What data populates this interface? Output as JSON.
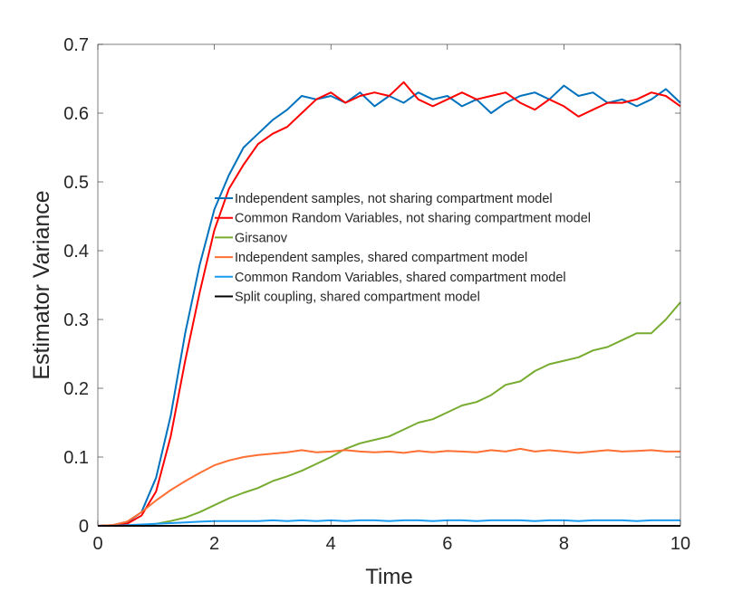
{
  "chart_data": {
    "type": "line",
    "title": "",
    "xlabel": "Time",
    "ylabel": "Estimator Variance",
    "xlim": [
      0,
      10
    ],
    "ylim": [
      0,
      0.7
    ],
    "xticks": [
      "0",
      "2",
      "4",
      "6",
      "8",
      "10"
    ],
    "yticks": [
      "0",
      "0.1",
      "0.2",
      "0.3",
      "0.4",
      "0.5",
      "0.6",
      "0.7"
    ],
    "grid": false,
    "legend_placement": "center",
    "x": [
      0,
      0.25,
      0.5,
      0.75,
      1,
      1.25,
      1.5,
      1.75,
      2,
      2.25,
      2.5,
      2.75,
      3,
      3.25,
      3.5,
      3.75,
      4,
      4.25,
      4.5,
      4.75,
      5,
      5.25,
      5.5,
      5.75,
      6,
      6.25,
      6.5,
      6.75,
      7,
      7.25,
      7.5,
      7.75,
      8,
      8.25,
      8.5,
      8.75,
      9,
      9.25,
      9.5,
      9.75,
      10
    ],
    "series": [
      {
        "name": "Independent samples, not sharing compartment model",
        "color": "#0072BD",
        "values": [
          0,
          0.001,
          0.005,
          0.02,
          0.07,
          0.16,
          0.28,
          0.38,
          0.46,
          0.51,
          0.55,
          0.57,
          0.59,
          0.605,
          0.625,
          0.62,
          0.625,
          0.615,
          0.63,
          0.61,
          0.625,
          0.615,
          0.63,
          0.62,
          0.625,
          0.61,
          0.62,
          0.6,
          0.615,
          0.625,
          0.63,
          0.62,
          0.64,
          0.625,
          0.63,
          0.615,
          0.62,
          0.61,
          0.62,
          0.635,
          0.615
        ]
      },
      {
        "name": "Common Random Variables, not sharing compartment model",
        "color": "#FF0000",
        "values": [
          0,
          0.001,
          0.003,
          0.015,
          0.05,
          0.13,
          0.24,
          0.34,
          0.43,
          0.49,
          0.525,
          0.555,
          0.57,
          0.58,
          0.6,
          0.62,
          0.63,
          0.615,
          0.625,
          0.63,
          0.625,
          0.645,
          0.62,
          0.61,
          0.62,
          0.63,
          0.62,
          0.625,
          0.63,
          0.615,
          0.605,
          0.62,
          0.61,
          0.595,
          0.605,
          0.615,
          0.615,
          0.62,
          0.63,
          0.625,
          0.61
        ]
      },
      {
        "name": "Girsanov",
        "color": "#77AC30",
        "values": [
          0,
          0,
          0,
          0.001,
          0.003,
          0.007,
          0.012,
          0.02,
          0.03,
          0.04,
          0.048,
          0.055,
          0.065,
          0.072,
          0.08,
          0.09,
          0.1,
          0.112,
          0.12,
          0.125,
          0.13,
          0.14,
          0.15,
          0.155,
          0.165,
          0.175,
          0.18,
          0.19,
          0.205,
          0.21,
          0.225,
          0.235,
          0.24,
          0.245,
          0.255,
          0.26,
          0.27,
          0.28,
          0.28,
          0.3,
          0.325
        ]
      },
      {
        "name": "Independent samples, shared compartment model",
        "color": "#FF6F33",
        "values": [
          0,
          0.001,
          0.006,
          0.02,
          0.037,
          0.052,
          0.065,
          0.077,
          0.088,
          0.095,
          0.1,
          0.103,
          0.105,
          0.107,
          0.11,
          0.107,
          0.108,
          0.11,
          0.108,
          0.107,
          0.108,
          0.106,
          0.109,
          0.107,
          0.109,
          0.108,
          0.107,
          0.11,
          0.108,
          0.112,
          0.108,
          0.11,
          0.108,
          0.106,
          0.108,
          0.11,
          0.108,
          0.109,
          0.11,
          0.108,
          0.108
        ]
      },
      {
        "name": "Common Random Variables, shared compartment model",
        "color": "#1A9BF0",
        "values": [
          0,
          0,
          0.001,
          0.002,
          0.003,
          0.004,
          0.005,
          0.006,
          0.007,
          0.007,
          0.007,
          0.007,
          0.008,
          0.007,
          0.008,
          0.007,
          0.008,
          0.007,
          0.008,
          0.008,
          0.007,
          0.008,
          0.008,
          0.007,
          0.008,
          0.008,
          0.007,
          0.008,
          0.008,
          0.008,
          0.007,
          0.008,
          0.008,
          0.007,
          0.008,
          0.008,
          0.008,
          0.007,
          0.008,
          0.008,
          0.008
        ]
      },
      {
        "name": "Split coupling, shared compartment model",
        "color": "#000000",
        "values": [
          0,
          0,
          0,
          0,
          0,
          0,
          0,
          0,
          0,
          0,
          0,
          0,
          0,
          0,
          0,
          0,
          0,
          0,
          0,
          0,
          0,
          0,
          0,
          0,
          0,
          0,
          0,
          0,
          0,
          0,
          0,
          0,
          0,
          0,
          0,
          0,
          0,
          0,
          0,
          0,
          0
        ]
      }
    ]
  }
}
